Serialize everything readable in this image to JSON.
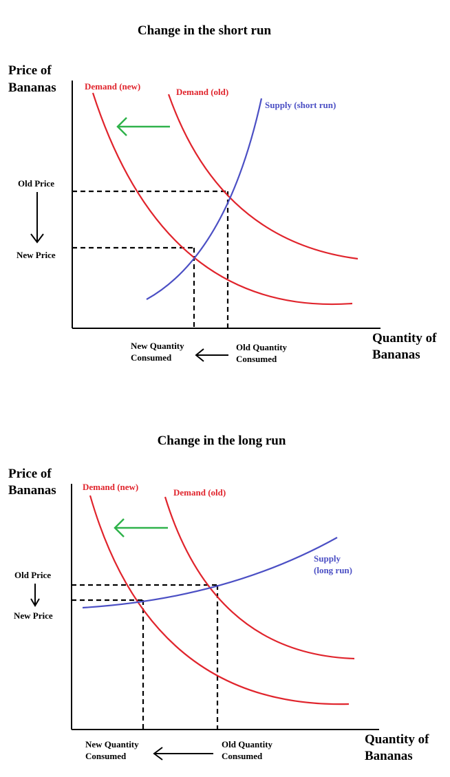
{
  "colors": {
    "demand": "#e0242c",
    "supply": "#4b4fc4",
    "shift_arrow": "#2fb24a",
    "ink": "#000000"
  },
  "short_run": {
    "title": "Change in the short run",
    "y_axis_label_line1": "Price of",
    "y_axis_label_line2": "Bananas",
    "x_axis_label_line1": "Quantity of",
    "x_axis_label_line2": "Bananas",
    "demand_new_label": "Demand (new)",
    "demand_old_label": "Demand (old)",
    "supply_label_line1": "Supply (short run)",
    "old_price_label": "Old Price",
    "new_price_label": "New Price",
    "new_quantity_line1": "New Quantity",
    "new_quantity_line2": "Consumed",
    "old_quantity_line1": "Old Quantity",
    "old_quantity_line2": "Consumed",
    "shift_arrow_icon": "left-arrow-icon"
  },
  "long_run": {
    "title": "Change in the long run",
    "y_axis_label_line1": "Price of",
    "y_axis_label_line2": "Bananas",
    "x_axis_label_line1": "Quantity of",
    "x_axis_label_line2": "Bananas",
    "demand_new_label": "Demand (new)",
    "demand_old_label": "Demand (old)",
    "supply_label_line1": "Supply",
    "supply_label_line2": "(long run)",
    "old_price_label": "Old Price",
    "new_price_label": "New Price",
    "new_quantity_line1": "New Quantity",
    "new_quantity_line2": "Consumed",
    "old_quantity_line1": "Old Quantity",
    "old_quantity_line2": "Consumed",
    "shift_arrow_icon": "left-arrow-icon"
  }
}
